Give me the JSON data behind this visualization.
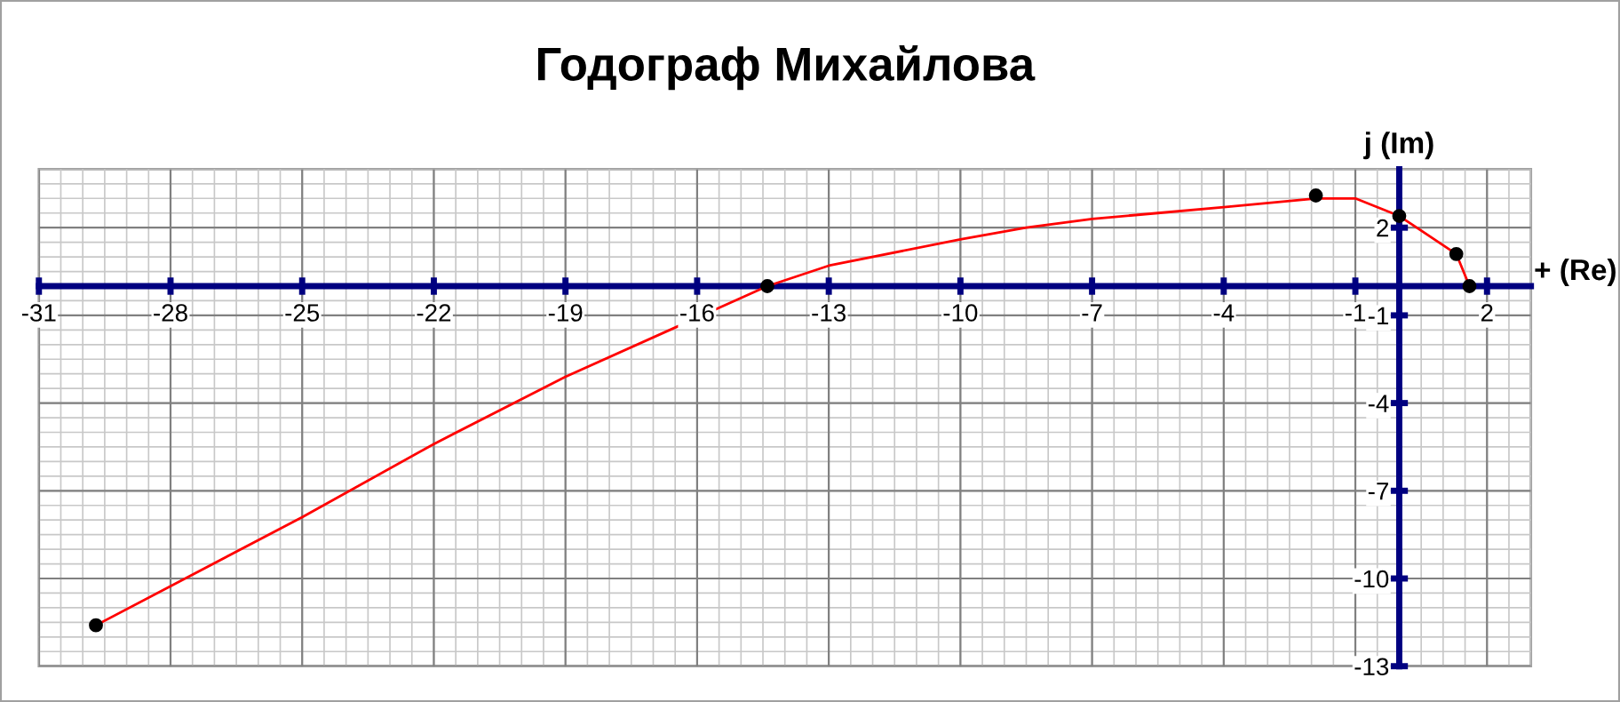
{
  "chart_data": {
    "type": "line",
    "title": "Годограф Михайлова",
    "xlabel": "+ (Re)",
    "ylabel": "j (Im)",
    "series": [
      {
        "type": "line",
        "color": "#ff0000",
        "marker": "none",
        "x": [
          -29.7,
          -25,
          -22,
          -19,
          -14.4,
          -13,
          -10,
          -8.5,
          -7,
          -5.5,
          -4,
          -1.9,
          -1.5,
          -1.0,
          0,
          1.3,
          1.6
        ],
        "values": [
          -11.6,
          -7.9,
          -5.4,
          -3.1,
          0,
          0.7,
          1.6,
          2.0,
          2.3,
          2.5,
          2.7,
          3.0,
          3.0,
          3.0,
          2.4,
          1.1,
          0
        ]
      },
      {
        "type": "scatter",
        "color": "#000000",
        "marker": "circle",
        "x": [
          -29.7,
          -14.4,
          -1.9,
          0,
          1.3,
          1.6
        ],
        "values": [
          -11.6,
          0,
          3.1,
          2.4,
          1.1,
          0
        ]
      }
    ],
    "xlim": [
      -31,
      3
    ],
    "ylim": [
      -13,
      4
    ],
    "xticks": [
      -31,
      -28,
      -25,
      -22,
      -19,
      -16,
      -13,
      -10,
      -7,
      -4,
      -1,
      2
    ],
    "yticks": [
      -13,
      -10,
      -7,
      -4,
      -1,
      2
    ],
    "grid": true,
    "legend": false
  }
}
